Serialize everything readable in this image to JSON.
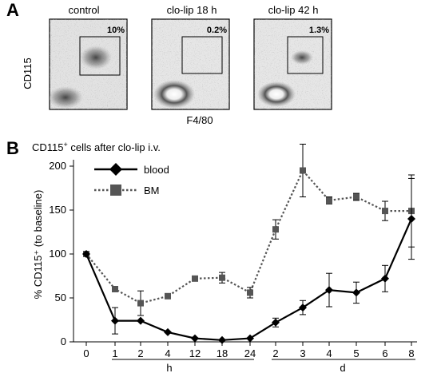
{
  "panel_a": {
    "letter": "A",
    "ylabel": "CD115",
    "xlabel": "F4/80",
    "plots": [
      {
        "title": "control",
        "percent": "10%"
      },
      {
        "title": "clo-lip 18 h",
        "percent": "0.2%"
      },
      {
        "title": "clo-lip  42 h",
        "percent": "1.3%"
      }
    ]
  },
  "panel_b": {
    "letter": "B",
    "title_pre": "CD115",
    "title_sup": "+",
    "title_post": " cells after clo-lip i.v.",
    "ylabel": "% CD115⁺ (to baseline)",
    "group_labels": [
      "h",
      "d"
    ]
  },
  "chart_data": {
    "type": "line",
    "categories": [
      "0",
      "1",
      "2",
      "4",
      "12",
      "18",
      "24",
      "2",
      "3",
      "4",
      "5",
      "6",
      "8"
    ],
    "ylim": [
      0,
      200
    ],
    "yticks": [
      0,
      50,
      100,
      150,
      200
    ],
    "legend_position": "top-left",
    "series": [
      {
        "name": "blood",
        "style": "solid",
        "marker": "diamond",
        "color": "#000000",
        "values": [
          100,
          24,
          24,
          11,
          4,
          2,
          4,
          22,
          39,
          59,
          56,
          72,
          140
        ],
        "errors": [
          0,
          15,
          0,
          0,
          0,
          0,
          0,
          5,
          8,
          19,
          12,
          15,
          46
        ]
      },
      {
        "name": "BM",
        "style": "dotted",
        "marker": "square",
        "color": "#555555",
        "values": [
          100,
          60,
          44,
          52,
          72,
          73,
          56,
          128,
          195,
          161,
          165,
          149,
          149
        ],
        "errors": [
          3,
          0,
          14,
          0,
          0,
          6,
          6,
          11,
          30,
          4,
          4,
          11,
          41
        ]
      }
    ]
  }
}
